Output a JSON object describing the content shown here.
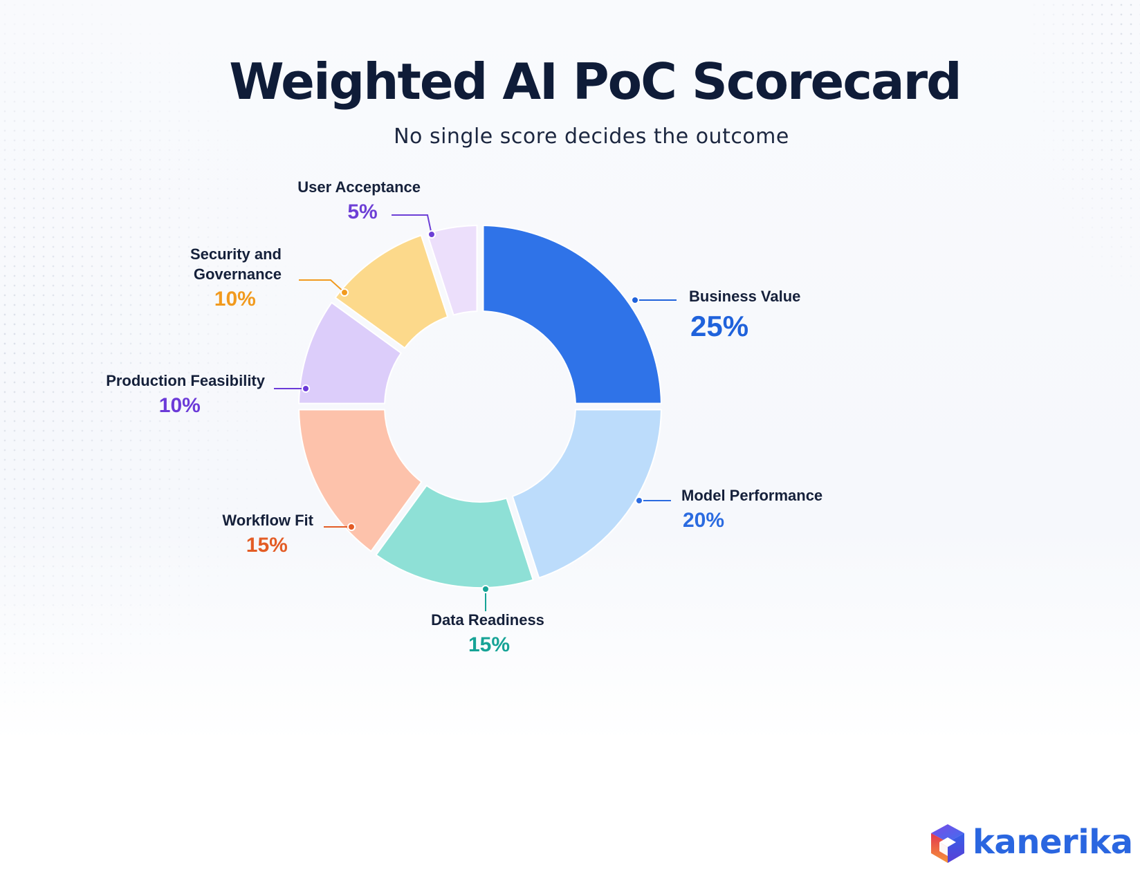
{
  "colors": {
    "title": "#0f1c38",
    "brand": "#2a66e0"
  },
  "brand": {
    "name": "kanerika",
    "icon": "cube-logo-icon"
  },
  "chart_data": {
    "type": "pie",
    "donut": true,
    "title": "Weighted AI PoC Scorecard",
    "subtitle": "No single score decides the outcome",
    "legend": "none",
    "slices": [
      {
        "label": "Business Value",
        "value": 25,
        "value_label": "25%",
        "color": "#2f73e8",
        "text_color": "#1f62db"
      },
      {
        "label": "Model Performance",
        "value": 20,
        "value_label": "20%",
        "color": "#bcdcfb",
        "text_color": "#2b6be0"
      },
      {
        "label": "Data Readiness",
        "value": 15,
        "value_label": "15%",
        "color": "#8ee0d6",
        "text_color": "#16a396"
      },
      {
        "label": "Workflow Fit",
        "value": 15,
        "value_label": "15%",
        "color": "#fdc2ab",
        "text_color": "#e35c25"
      },
      {
        "label": "Production Feasibility",
        "value": 10,
        "value_label": "10%",
        "color": "#dccdfa",
        "text_color": "#6b3ad8"
      },
      {
        "label": "Security and Governance",
        "label_lines": [
          "Security and",
          "Governance"
        ],
        "value": 10,
        "value_label": "10%",
        "color": "#fcd98b",
        "text_color": "#f19a1e"
      },
      {
        "label": "User Acceptance",
        "value": 5,
        "value_label": "5%",
        "color": "#ecdffb",
        "text_color": "#6d3fd6"
      }
    ]
  }
}
